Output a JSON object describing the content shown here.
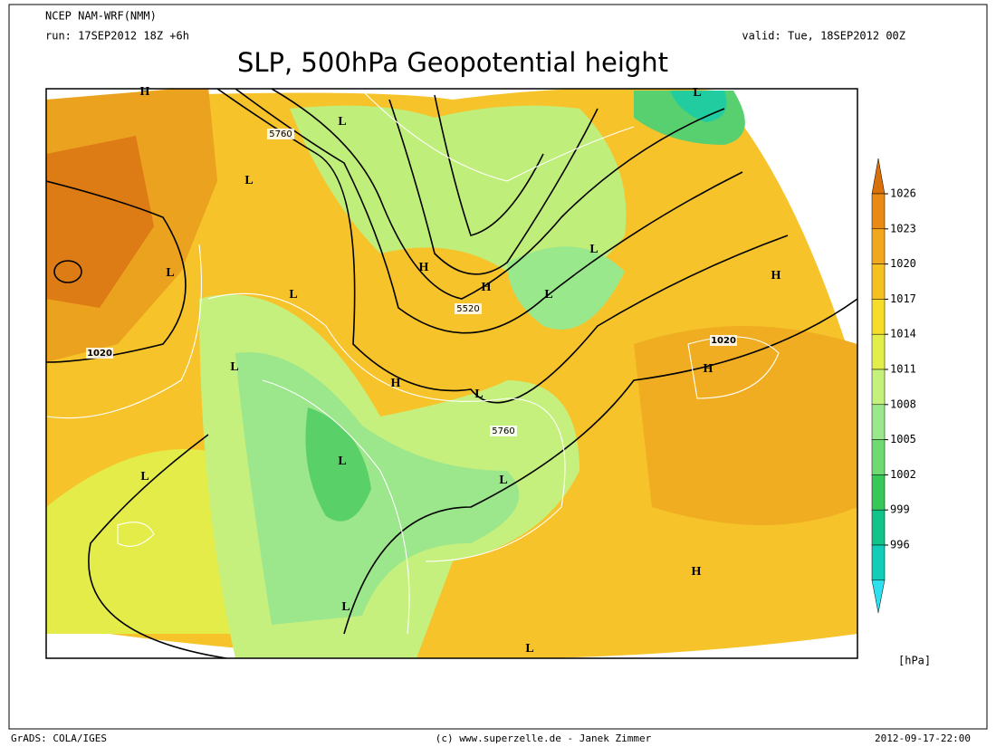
{
  "header": {
    "model": "NCEP NAM-WRF(NMM)",
    "run": "run: 17SEP2012 18Z +6h",
    "valid": "valid: Tue, 18SEP2012 00Z",
    "title": "SLP, 500hPa Geopotential height"
  },
  "colorbar": {
    "levels": [
      "1026",
      "1023",
      "1020",
      "1017",
      "1014",
      "1011",
      "1008",
      "1005",
      "1002",
      "999",
      "996"
    ],
    "colors": [
      "#d8700c",
      "#e88a14",
      "#f2a81e",
      "#f6c020",
      "#f8dc2a",
      "#e2ee4a",
      "#c4f07c",
      "#9ae88c",
      "#70da72",
      "#38c858",
      "#12c48a",
      "#12ceb8",
      "#2ce0ee"
    ],
    "unit": "[hPa]"
  },
  "map": {
    "pressure_centers": [
      "H",
      "L",
      "L",
      "L",
      "L",
      "H",
      "H",
      "L",
      "L",
      "L",
      "H",
      "L",
      "L",
      "L",
      "L",
      "L",
      "L",
      "H",
      "H",
      "H",
      "L"
    ],
    "contour_labels": [
      "5760",
      "5520",
      "5760",
      "1020",
      "1020"
    ]
  },
  "footer": {
    "left": "GrADS: COLA/IGES",
    "center": "(c) www.superzelle.de - Janek Zimmer",
    "right": "2012-09-17-22:00"
  }
}
